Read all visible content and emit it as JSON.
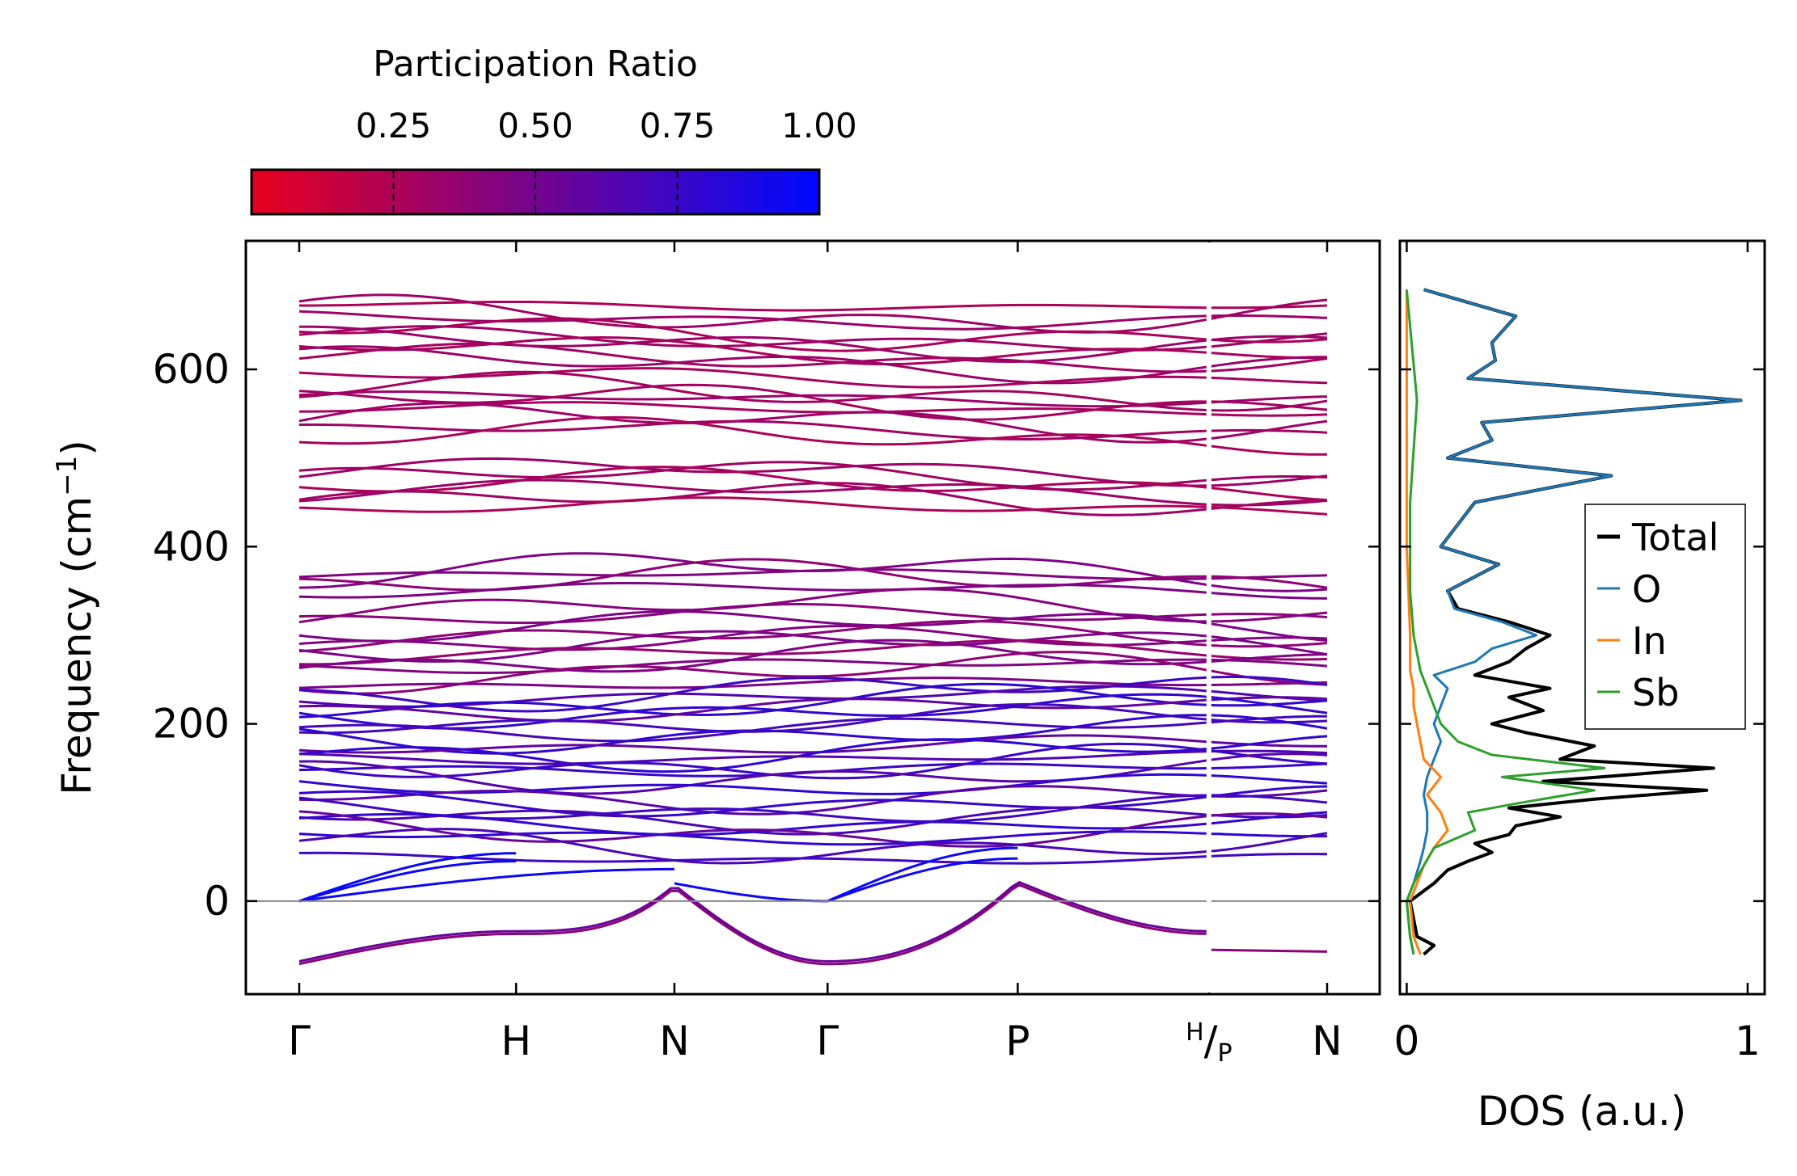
{
  "chart_data": [
    {
      "type": "line",
      "subtype": "phonon-band-structure",
      "ylabel": "Frequency (cm",
      "ylabel_sup": "−1",
      "ylabel_close": ")",
      "ylim": [
        -105,
        745
      ],
      "yticks": [
        0,
        200,
        400,
        600
      ],
      "kpoint_ticks": [
        {
          "label": "Γ",
          "pos": 0.0
        },
        {
          "label": "H",
          "pos": 0.211
        },
        {
          "label": "N",
          "pos": 0.365
        },
        {
          "label": "Γ",
          "pos": 0.514
        },
        {
          "label": "P",
          "pos": 0.699
        },
        {
          "label": "H",
          "sub": "/",
          "sub2": "P",
          "pos": 0.885
        },
        {
          "label": "N",
          "pos": 1.0
        }
      ],
      "break_at": 0.885,
      "zero_line": 0,
      "colorbar": {
        "title": "Participation Ratio",
        "ticks": [
          "0.25",
          "0.50",
          "0.75",
          "1.00"
        ],
        "range": [
          0.0,
          1.0
        ],
        "low_color": "#e8001e",
        "high_color": "#0008ff"
      },
      "acoustic_max_cm1": 60,
      "imaginary_min_cm1": -68,
      "flat_bands_cm1": [
        672,
        661,
        656,
        641,
        634,
        629,
        622,
        612,
        606,
        591,
        574,
        567,
        563,
        555,
        541,
        531,
        524,
        485,
        479,
        470,
        462,
        452,
        444,
        373,
        368,
        362,
        351,
        331,
        321,
        311,
        299,
        293,
        289,
        281,
        272,
        266,
        258,
        245,
        236,
        231,
        224,
        218,
        214,
        204,
        196,
        188,
        176,
        169,
        162,
        156,
        150,
        143,
        131,
        119,
        112,
        104,
        96,
        88,
        80,
        74,
        64,
        48
      ]
    },
    {
      "type": "line",
      "subtype": "density-of-states",
      "xlabel": "DOS (a.u.)",
      "xticks": [
        "0",
        "1"
      ],
      "xlim": [
        -0.02,
        1.05
      ],
      "legend_position": "center-right",
      "series": [
        {
          "name": "Total",
          "color": "#000000",
          "points": [
            [
              -60,
              0.05
            ],
            [
              -50,
              0.08
            ],
            [
              -40,
              0.03
            ],
            [
              -20,
              0.02
            ],
            [
              0,
              0.01
            ],
            [
              20,
              0.08
            ],
            [
              35,
              0.12
            ],
            [
              45,
              0.18
            ],
            [
              55,
              0.25
            ],
            [
              65,
              0.2
            ],
            [
              75,
              0.3
            ],
            [
              85,
              0.32
            ],
            [
              95,
              0.45
            ],
            [
              105,
              0.3
            ],
            [
              115,
              0.55
            ],
            [
              125,
              0.88
            ],
            [
              135,
              0.4
            ],
            [
              150,
              0.9
            ],
            [
              160,
              0.45
            ],
            [
              175,
              0.55
            ],
            [
              190,
              0.35
            ],
            [
              200,
              0.25
            ],
            [
              215,
              0.4
            ],
            [
              230,
              0.3
            ],
            [
              240,
              0.42
            ],
            [
              255,
              0.2
            ],
            [
              270,
              0.3
            ],
            [
              285,
              0.35
            ],
            [
              300,
              0.42
            ],
            [
              315,
              0.3
            ],
            [
              330,
              0.15
            ],
            [
              350,
              0.12
            ],
            [
              380,
              0.27
            ],
            [
              400,
              0.1
            ],
            [
              450,
              0.2
            ],
            [
              480,
              0.6
            ],
            [
              500,
              0.12
            ],
            [
              520,
              0.25
            ],
            [
              540,
              0.22
            ],
            [
              565,
              0.98
            ],
            [
              590,
              0.18
            ],
            [
              610,
              0.26
            ],
            [
              630,
              0.25
            ],
            [
              660,
              0.32
            ],
            [
              690,
              0.05
            ]
          ]
        },
        {
          "name": "O",
          "color": "#1f77b4",
          "points": [
            [
              -60,
              0.02
            ],
            [
              -40,
              0.01
            ],
            [
              0,
              0.0
            ],
            [
              20,
              0.02
            ],
            [
              45,
              0.04
            ],
            [
              60,
              0.05
            ],
            [
              80,
              0.06
            ],
            [
              100,
              0.06
            ],
            [
              120,
              0.05
            ],
            [
              140,
              0.06
            ],
            [
              160,
              0.08
            ],
            [
              180,
              0.1
            ],
            [
              200,
              0.08
            ],
            [
              220,
              0.1
            ],
            [
              240,
              0.12
            ],
            [
              255,
              0.08
            ],
            [
              270,
              0.2
            ],
            [
              285,
              0.25
            ],
            [
              300,
              0.38
            ],
            [
              315,
              0.28
            ],
            [
              330,
              0.14
            ],
            [
              350,
              0.12
            ],
            [
              380,
              0.27
            ],
            [
              400,
              0.1
            ],
            [
              450,
              0.2
            ],
            [
              480,
              0.6
            ],
            [
              500,
              0.12
            ],
            [
              520,
              0.25
            ],
            [
              540,
              0.22
            ],
            [
              565,
              0.98
            ],
            [
              590,
              0.18
            ],
            [
              610,
              0.26
            ],
            [
              630,
              0.25
            ],
            [
              660,
              0.32
            ],
            [
              690,
              0.05
            ]
          ]
        },
        {
          "name": "In",
          "color": "#ff7f0e",
          "points": [
            [
              -60,
              0.04
            ],
            [
              -40,
              0.02
            ],
            [
              0,
              0.01
            ],
            [
              20,
              0.03
            ],
            [
              40,
              0.05
            ],
            [
              60,
              0.08
            ],
            [
              80,
              0.12
            ],
            [
              100,
              0.1
            ],
            [
              120,
              0.06
            ],
            [
              140,
              0.1
            ],
            [
              160,
              0.05
            ],
            [
              180,
              0.04
            ],
            [
              200,
              0.03
            ],
            [
              220,
              0.02
            ],
            [
              240,
              0.02
            ],
            [
              260,
              0.01
            ],
            [
              300,
              0.01
            ],
            [
              400,
              0.0
            ],
            [
              690,
              0.0
            ]
          ]
        },
        {
          "name": "Sb",
          "color": "#2ca02c",
          "points": [
            [
              -60,
              0.02
            ],
            [
              -40,
              0.01
            ],
            [
              0,
              0.0
            ],
            [
              20,
              0.02
            ],
            [
              40,
              0.05
            ],
            [
              60,
              0.08
            ],
            [
              80,
              0.2
            ],
            [
              100,
              0.18
            ],
            [
              110,
              0.32
            ],
            [
              125,
              0.55
            ],
            [
              140,
              0.28
            ],
            [
              150,
              0.58
            ],
            [
              165,
              0.25
            ],
            [
              180,
              0.15
            ],
            [
              200,
              0.1
            ],
            [
              220,
              0.08
            ],
            [
              240,
              0.06
            ],
            [
              260,
              0.04
            ],
            [
              280,
              0.03
            ],
            [
              300,
              0.02
            ],
            [
              350,
              0.01
            ],
            [
              450,
              0.01
            ],
            [
              565,
              0.03
            ],
            [
              690,
              0.0
            ]
          ]
        }
      ]
    }
  ]
}
